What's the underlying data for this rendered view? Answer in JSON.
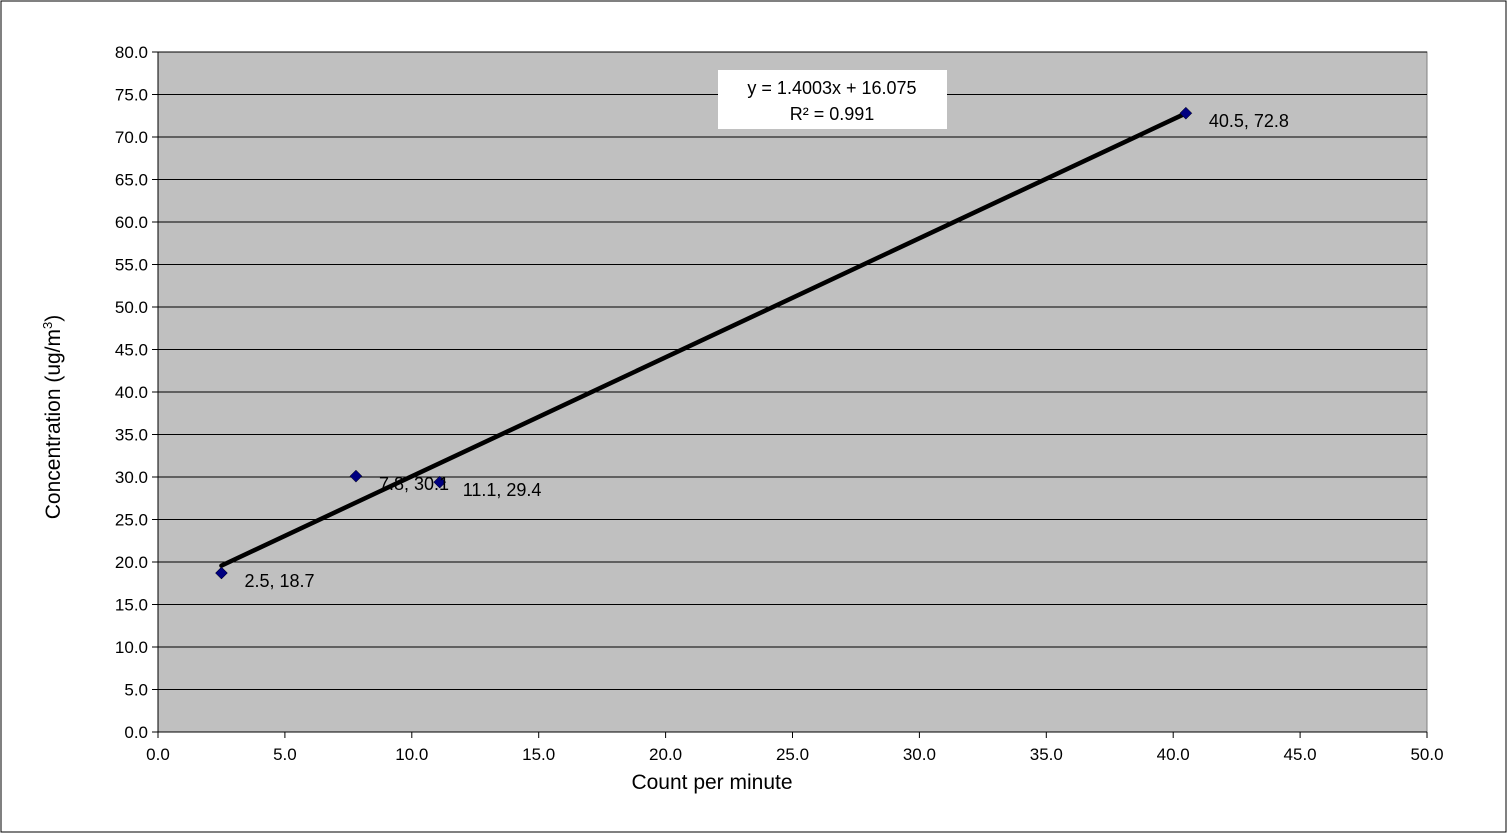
{
  "chart_data": {
    "type": "scatter",
    "xlabel": "Count per minute",
    "ylabel": "Concentration (ug/m3)",
    "ylabel_main": "Concentration (ug/m",
    "ylabel_sup": "3",
    "ylabel_close": ")",
    "xlim": [
      0,
      50
    ],
    "ylim": [
      0,
      80
    ],
    "x_ticks": [
      "0.0",
      "5.0",
      "10.0",
      "15.0",
      "20.0",
      "25.0",
      "30.0",
      "35.0",
      "40.0",
      "45.0",
      "50.0"
    ],
    "y_ticks": [
      "0.0",
      "5.0",
      "10.0",
      "15.0",
      "20.0",
      "25.0",
      "30.0",
      "35.0",
      "40.0",
      "45.0",
      "50.0",
      "55.0",
      "60.0",
      "65.0",
      "70.0",
      "75.0",
      "80.0"
    ],
    "grid": true,
    "plot_background": "#c0c0c0",
    "marker_color": "#000080",
    "trendline_color": "#000000",
    "series": [
      {
        "points": [
          {
            "x": 2.5,
            "y": 18.7,
            "label": "2.5, 18.7"
          },
          {
            "x": 7.8,
            "y": 30.1,
            "label": "7.8, 30.1"
          },
          {
            "x": 11.1,
            "y": 29.4,
            "label": "11.1, 29.4"
          },
          {
            "x": 40.5,
            "y": 72.8,
            "label": "40.5, 72.8"
          }
        ]
      }
    ],
    "trendline": {
      "slope": 1.4003,
      "intercept": 16.075,
      "x_range": [
        2.5,
        40.5
      ],
      "equation": "y = 1.4003x + 16.075",
      "r_squared": "R² = 0.991"
    }
  }
}
